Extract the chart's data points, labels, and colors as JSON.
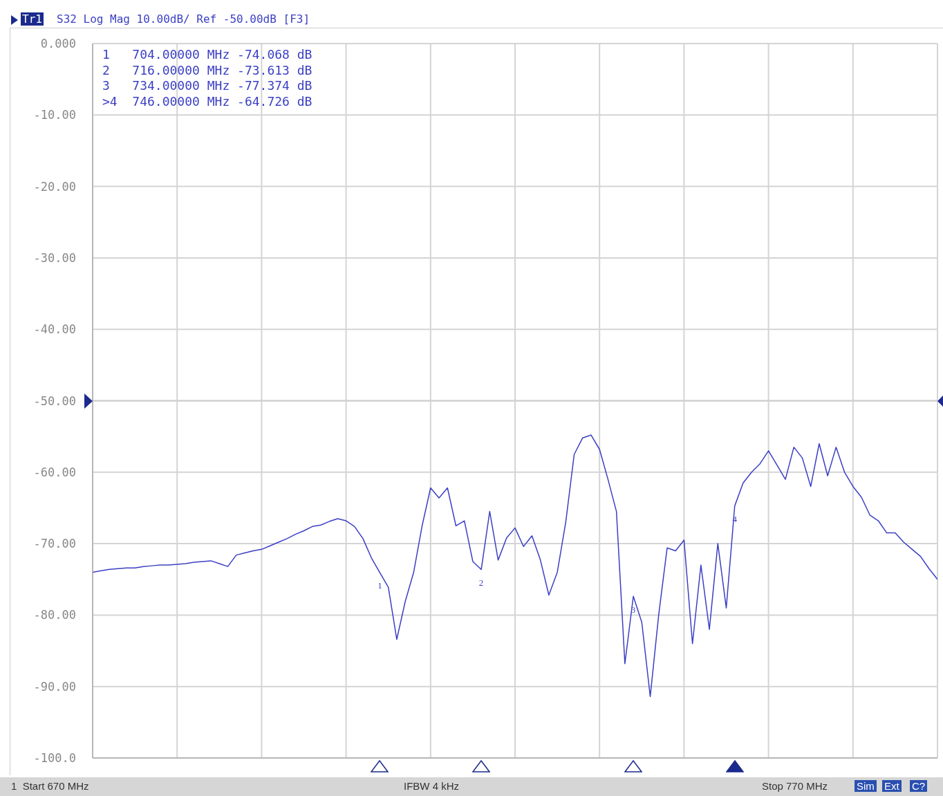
{
  "chart_data": {
    "type": "line",
    "color": "#3b3fc4",
    "marker": "none",
    "line_style": "solid",
    "grid": true,
    "tick_labels": "y",
    "categories": [
      null,
      null,
      null,
      null,
      null,
      null,
      null,
      null,
      null,
      null,
      null,
      null,
      null,
      null,
      null,
      null,
      null,
      null,
      null,
      null,
      null,
      null,
      null,
      null,
      null,
      null,
      null,
      null,
      null,
      null,
      null,
      null,
      null,
      null,
      null,
      null,
      null,
      null,
      null,
      null,
      null,
      null,
      null,
      null,
      null,
      null,
      null,
      null,
      null,
      null,
      null,
      null,
      null,
      null,
      null,
      null,
      null,
      null,
      null,
      null,
      null,
      null,
      null,
      null,
      null,
      null,
      null,
      null,
      null,
      null,
      null,
      null,
      null,
      null,
      null,
      null,
      null,
      null,
      null,
      null,
      null,
      null,
      null,
      null,
      null,
      null,
      null,
      null,
      null,
      null,
      null,
      null,
      null,
      null,
      null,
      null,
      null,
      null,
      null,
      null,
      null
    ],
    "values": [
      -74,
      -73.8,
      -73.6,
      -73.5,
      -73.4,
      -73.4,
      -73.2,
      -73.1,
      -73,
      -73,
      -72.9,
      -72.8,
      -72.6,
      -72.5,
      -72.4,
      -72.8,
      -73.2,
      -71.6,
      -71.3,
      -71,
      -70.8,
      -70.3,
      -69.8,
      -69.3,
      -68.7,
      -68.2,
      -67.6,
      -67.4,
      -66.9,
      -66.5,
      -66.8,
      -67.6,
      -69.3,
      -72,
      -74.068,
      -76.1,
      -83.4,
      -78.1,
      -74,
      -67.5,
      -62.2,
      -63.6,
      -62.2,
      -67.5,
      -66.8,
      -72.5,
      -73.613,
      -65.5,
      -72.3,
      -69.2,
      -67.8,
      -70.4,
      -68.9,
      -72.3,
      -77.2,
      -74,
      -67,
      -57.5,
      -55.2,
      -54.8,
      -56.8,
      -61,
      -65.5,
      -86.8,
      -77.374,
      -81,
      -91.4,
      -80,
      -70.6,
      -71,
      -69.5,
      -84,
      -73,
      -82,
      -70,
      -79,
      -64.726,
      -61.5,
      -60,
      -58.8,
      -57,
      -59,
      -61,
      -56.5,
      -58,
      -62,
      -56,
      -60.5,
      -56.5,
      -60,
      -62,
      -63.5,
      -66,
      -66.8,
      -68.5,
      -68.5,
      -69.8,
      -70.8,
      -71.8,
      -73.5,
      -75
    ],
    "ylim": [
      -100,
      0
    ],
    "yticks": [
      {
        "value": 0,
        "label": "0.000"
      },
      {
        "value": -10,
        "label": "-10.00"
      },
      {
        "value": -20,
        "label": "-20.00"
      },
      {
        "value": -30,
        "label": "-30.00"
      },
      {
        "value": -40,
        "label": "-40.00"
      },
      {
        "value": -50,
        "label": "-50.00"
      },
      {
        "value": -60,
        "label": "-60.00"
      },
      {
        "value": -70,
        "label": "-70.00"
      },
      {
        "value": -80,
        "label": "-80.00"
      },
      {
        "value": -90,
        "label": "-90.00"
      },
      {
        "value": -100,
        "label": "-100.0"
      }
    ],
    "ref_lines": [
      {
        "axis": "y",
        "value": -50,
        "color": "#cfcfcf"
      }
    ],
    "annotations": [
      "Tr1",
      "S32 Log Mag 10.00dB/ Ref -50.00dB [F3]",
      "1   704.00000 MHz -74.068 dB",
      "2   716.00000 MHz -73.613 dB",
      "3   734.00000 MHz -77.374 dB",
      ">4  746.00000 MHz -64.726 dB",
      {
        "text": "1",
        "y": -74.068
      },
      {
        "text": "2",
        "y": -73.613
      },
      {
        "text": "3",
        "y": -77.374
      },
      {
        "text": "4",
        "y": -64.726
      },
      "1  Start 670 MHz",
      "IFBW 4 kHz",
      "Stop 770 MHz",
      "Sim",
      "Ext",
      "C?"
    ]
  }
}
